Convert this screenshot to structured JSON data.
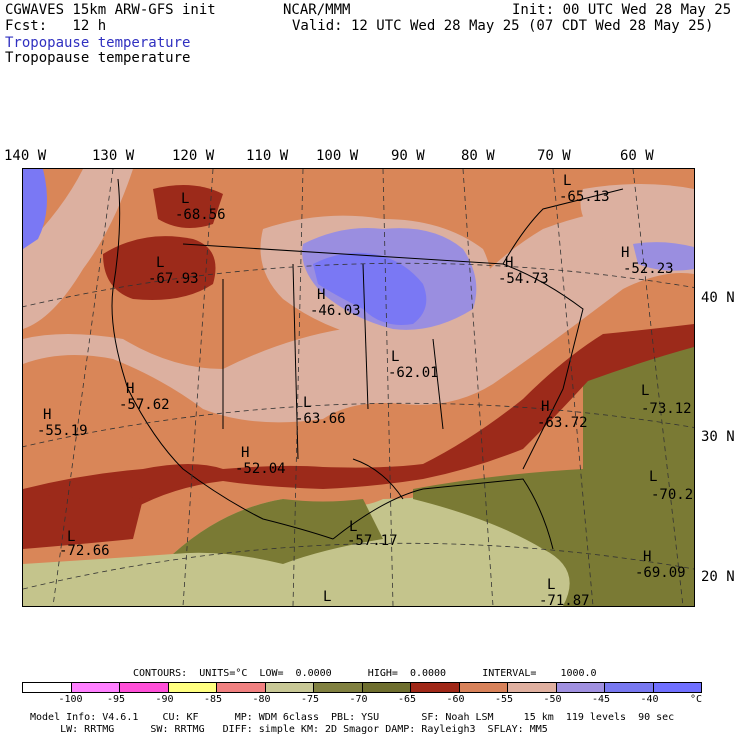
{
  "header": {
    "model": "CGWAVES 15km ARW-GFS init",
    "forecast": "Fcst:   12 h",
    "org": "NCAR/MMM",
    "init": "Init: 00 UTC Wed 28 May 25",
    "valid": "Valid: 12 UTC Wed 28 May 25 (07 CDT Wed 28 May 25)",
    "field_colored": "Tropopause temperature",
    "field_contour": "Tropopause temperature"
  },
  "longitudes": [
    "140 W",
    "130 W",
    "120 W",
    "110 W",
    "100 W",
    "90 W",
    "80 W",
    "70 W",
    "60 W"
  ],
  "latitudes": [
    "40 N",
    "30 N",
    "20 N"
  ],
  "map_labels": [
    {
      "mark": "L",
      "value": "-68.56"
    },
    {
      "mark": "L",
      "value": "-67.93"
    },
    {
      "mark": "H",
      "value": "-46.03"
    },
    {
      "mark": "L",
      "value": "-62.01"
    },
    {
      "mark": "H",
      "value": "-54.73"
    },
    {
      "mark": "L",
      "value": "-65.13"
    },
    {
      "mark": "H",
      "value": "-52.23"
    },
    {
      "mark": "H",
      "value": "-57.62"
    },
    {
      "mark": "H",
      "value": "-55.19"
    },
    {
      "mark": "L",
      "value": "-63.66"
    },
    {
      "mark": "H",
      "value": "-52.04"
    },
    {
      "mark": "H",
      "value": "-63.72"
    },
    {
      "mark": "L",
      "value": "-73.12"
    },
    {
      "mark": "L",
      "value": "-70.2"
    },
    {
      "mark": "L",
      "value": "-72.66"
    },
    {
      "mark": "L",
      "value": "-57.17"
    },
    {
      "mark": "H",
      "value": "-69.09"
    },
    {
      "mark": "L",
      "value": "-71.87"
    },
    {
      "mark": "L",
      "value": ""
    }
  ],
  "contours": "CONTOURS:  UNITS=°C  LOW=  0.0000      HIGH=  0.0000      INTERVAL=    1000.0",
  "colorbar": {
    "colors": [
      "#ffffff",
      "#ff80ff",
      "#ff50d8",
      "#ffff80",
      "#f08080",
      "#c8c896",
      "#808040",
      "#6e6e2e",
      "#a02818",
      "#d8825a",
      "#e0b0a0",
      "#a090e0",
      "#7878f0",
      "#7070ff"
    ],
    "ticks": [
      "-100",
      "-95",
      "-90",
      "-85",
      "-80",
      "-75",
      "-70",
      "-65",
      "-60",
      "-55",
      "-50",
      "-45",
      "-40"
    ],
    "unit": "°C"
  },
  "footer": {
    "line1": "Model Info: V4.6.1    CU: KF      MP: WDM 6class  PBL: YSU       SF: Noah LSM     15 km  119 levels  90 sec",
    "line2": "     LW: RRTMG      SW: RRTMG   DIFF: simple KM: 2D Smagor DAMP: Rayleigh3  SFLAY: MM5"
  },
  "palette": {
    "tropical_olive": "#7a7a34",
    "tropical_tan": "#c4c48c",
    "subtropical_red": "#9c2a1a",
    "mid_orange": "#d98658",
    "light_pink": "#dcb0a0",
    "lavender": "#9a8ee0",
    "violet": "#7a78f4"
  }
}
